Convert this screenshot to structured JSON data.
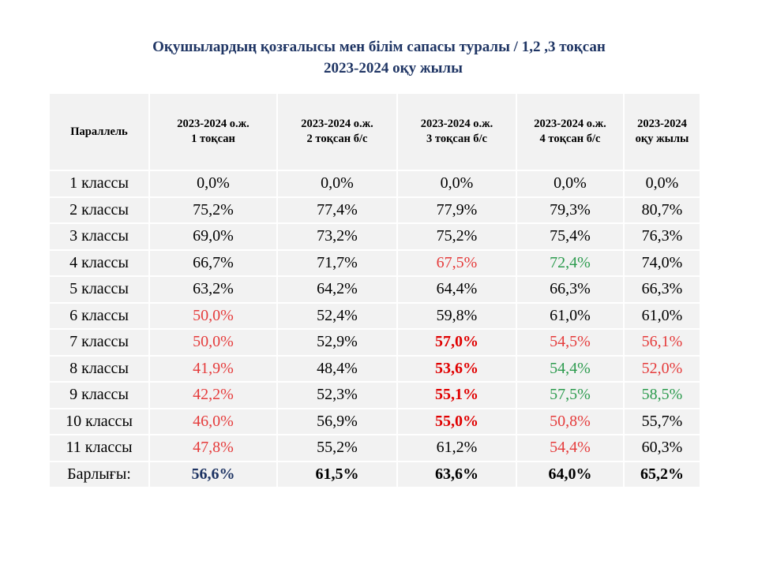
{
  "title": {
    "line1": "Оқушылардың қозғалысы мен білім сапасы туралы / 1,2 ,3 тоқсан",
    "line2": "2023-2024 оқу жылы"
  },
  "table": {
    "headers": [
      {
        "l1": "Параллель",
        "l2": ""
      },
      {
        "l1": "2023-2024 о.ж.",
        "l2": "1 тоқсан"
      },
      {
        "l1": "2023-2024 о.ж.",
        "l2": "2 тоқсан б/с"
      },
      {
        "l1": "2023-2024 о.ж.",
        "l2": "3 тоқсан б/с"
      },
      {
        "l1": "2023-2024 о.ж.",
        "l2": "4 тоқсан б/с"
      },
      {
        "l1": "2023-2024",
        "l2": "оқу жылы"
      }
    ],
    "rows": [
      {
        "label": "1 классы",
        "values": [
          "0,0%",
          "0,0%",
          "0,0%",
          "0,0%",
          "0,0%"
        ],
        "styles": [
          "",
          "",
          "",
          "",
          ""
        ]
      },
      {
        "label": "2 классы",
        "values": [
          "75,2%",
          "77,4%",
          "77,9%",
          "79,3%",
          "80,7%"
        ],
        "styles": [
          "",
          "",
          "",
          "",
          ""
        ]
      },
      {
        "label": "3 классы",
        "values": [
          "69,0%",
          "73,2%",
          "75,2%",
          "75,4%",
          "76,3%"
        ],
        "styles": [
          "",
          "",
          "",
          "",
          ""
        ]
      },
      {
        "label": "4 классы",
        "values": [
          "66,7%",
          "71,7%",
          "67,5%",
          "72,4%",
          "74,0%"
        ],
        "styles": [
          "",
          "",
          "red",
          "green",
          ""
        ]
      },
      {
        "label": "5 классы",
        "values": [
          "63,2%",
          "64,2%",
          "64,4%",
          "66,3%",
          "66,3%"
        ],
        "styles": [
          "",
          "",
          "",
          "",
          ""
        ]
      },
      {
        "label": "6 классы",
        "values": [
          "50,0%",
          "52,4%",
          "59,8%",
          "61,0%",
          "61,0%"
        ],
        "styles": [
          "red",
          "",
          "",
          "",
          ""
        ]
      },
      {
        "label": "7 классы",
        "values": [
          "50,0%",
          "52,9%",
          "57,0%",
          "54,5%",
          "56,1%"
        ],
        "styles": [
          "red",
          "",
          "redbold",
          "red",
          "red"
        ]
      },
      {
        "label": "8 классы",
        "values": [
          "41,9%",
          "48,4%",
          "53,6%",
          "54,4%",
          "52,0%"
        ],
        "styles": [
          "red",
          "",
          "redbold",
          "green",
          "red"
        ]
      },
      {
        "label": "9 классы",
        "values": [
          "42,2%",
          "52,3%",
          "55,1%",
          "57,5%",
          "58,5%"
        ],
        "styles": [
          "red",
          "",
          "redbold",
          "green",
          "green"
        ]
      },
      {
        "label": "10 классы",
        "values": [
          "46,0%",
          "56,9%",
          "55,0%",
          "50,8%",
          "55,7%"
        ],
        "styles": [
          "red",
          "",
          "redbold",
          "red",
          ""
        ]
      },
      {
        "label": "11 классы",
        "values": [
          "47,8%",
          "55,2%",
          "61,2%",
          "54,4%",
          "60,3%"
        ],
        "styles": [
          "red",
          "",
          "",
          "red",
          ""
        ]
      },
      {
        "label": "Барлығы:",
        "values": [
          "56,6%",
          "61,5%",
          "63,6%",
          "64,0%",
          "65,2%"
        ],
        "styles": [
          "navy",
          "bold",
          "bold",
          "bold",
          "bold"
        ]
      }
    ]
  },
  "colors": {
    "title": "#1f3564",
    "cell_bg": "#f2f2f2",
    "red": "#e53b3b",
    "green": "#2c9b4e",
    "navy": "#1f3564"
  }
}
